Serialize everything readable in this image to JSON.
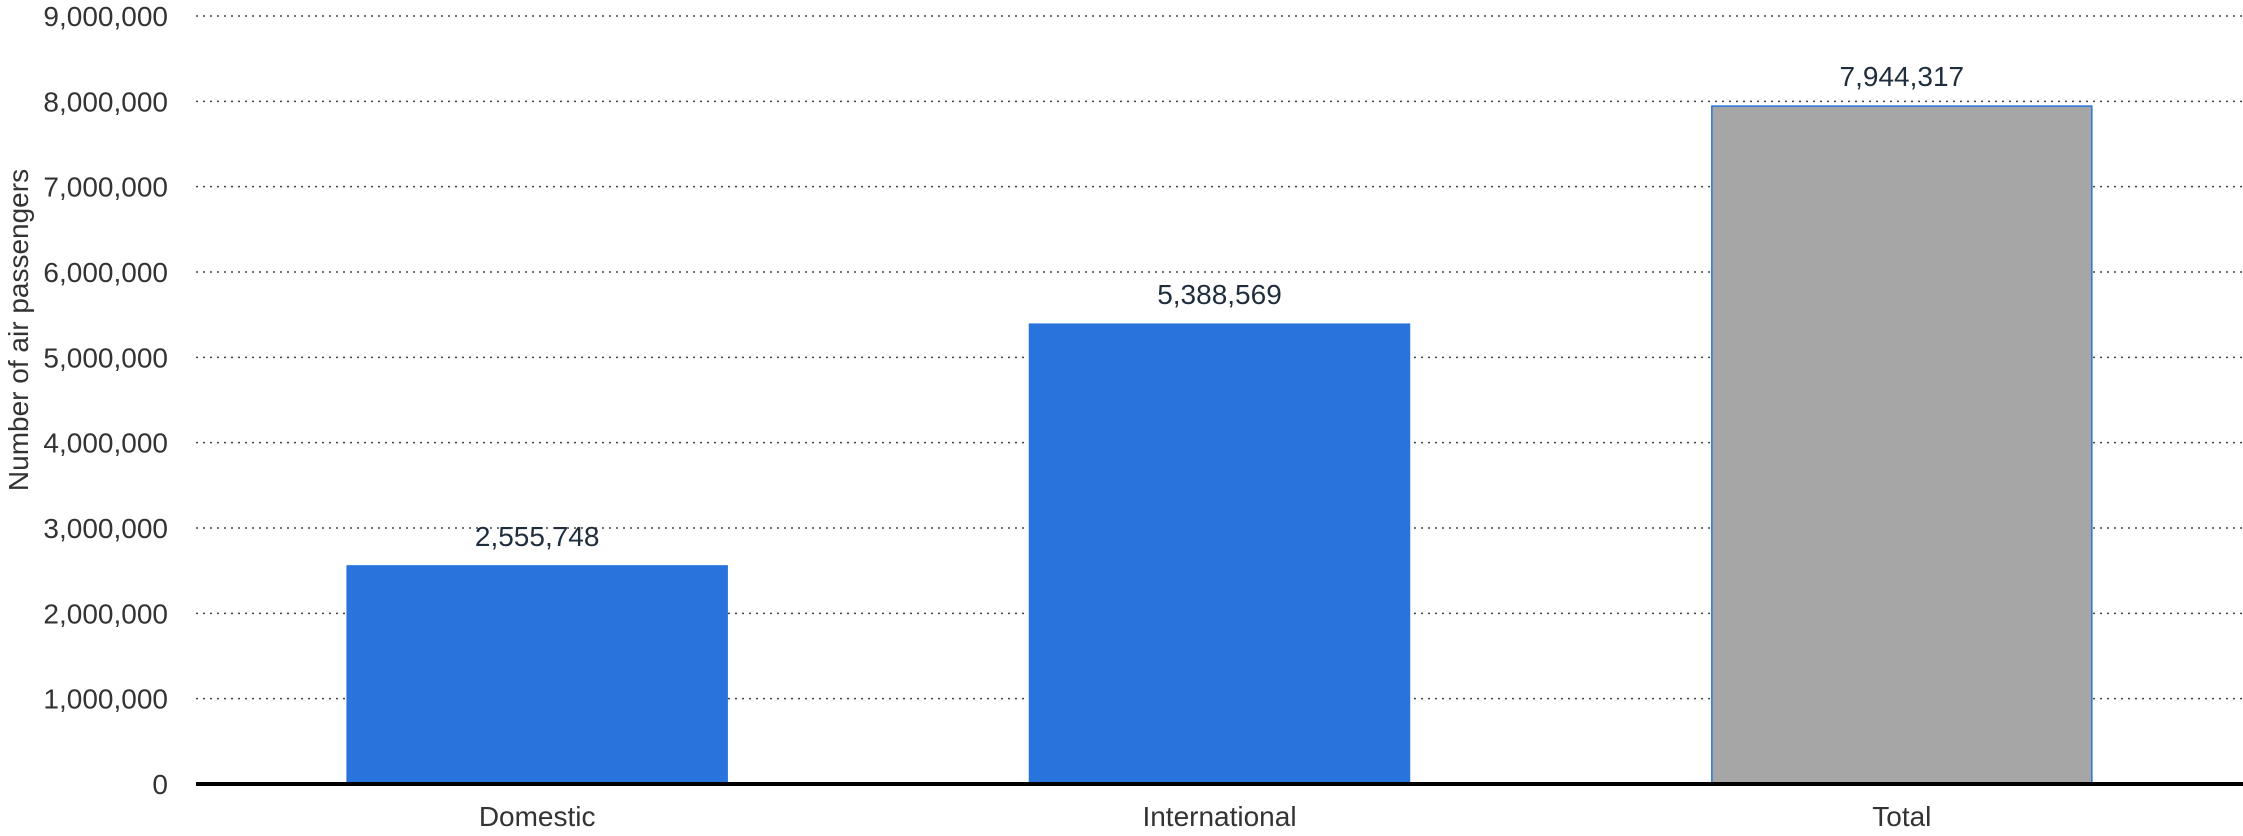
{
  "chart_data": {
    "type": "bar",
    "categories": [
      "Domestic",
      "International",
      "Total"
    ],
    "values": [
      2555748,
      5388569,
      7944317
    ],
    "data_labels": [
      "2,555,748",
      "5,388,569",
      "7,944,317"
    ],
    "bar_colors": [
      "#2874dc",
      "#2874dc",
      "#a6a6a6"
    ],
    "bar_outline_color": "#2874dc",
    "title": "",
    "xlabel": "",
    "ylabel": "Number of air passengers",
    "ylim": [
      0,
      9000000
    ],
    "yticks": [
      0,
      1000000,
      2000000,
      3000000,
      4000000,
      5000000,
      6000000,
      7000000,
      8000000,
      9000000
    ],
    "ytick_labels": [
      "0",
      "1,000,000",
      "2,000,000",
      "3,000,000",
      "4,000,000",
      "5,000,000",
      "6,000,000",
      "7,000,000",
      "8,000,000",
      "9,000,000"
    ],
    "grid": true,
    "grid_style": "dotted",
    "legend": "none"
  }
}
